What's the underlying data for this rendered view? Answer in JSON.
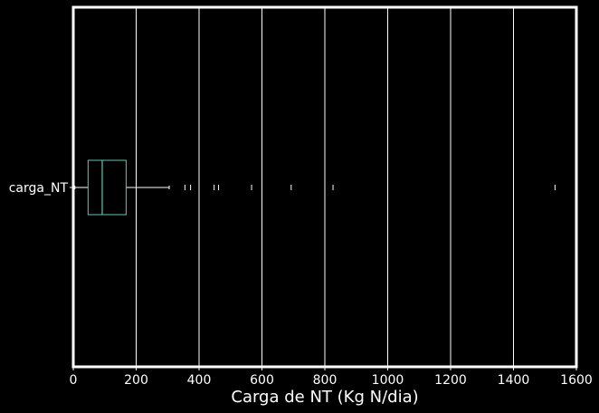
{
  "chart_data": {
    "type": "boxplot",
    "orientation": "horizontal",
    "xlabel": "Carga de NT (Kg N/dia)",
    "xlim": [
      0,
      1600
    ],
    "xticks": [
      0,
      200,
      400,
      600,
      800,
      1000,
      1200,
      1400,
      1600
    ],
    "grid": "vertical",
    "categories": [
      "carga_NT"
    ],
    "box": {
      "whisker_low": 5,
      "q1": 47,
      "median": 92,
      "q3": 168,
      "whisker_high": 305
    },
    "fliers": [
      355,
      373,
      448,
      462,
      567,
      693,
      826,
      1532
    ],
    "colors": {
      "background": "#000000",
      "axes": "#ffffff",
      "grid": "#ffffff",
      "box": "#5fc9b3",
      "whisker": "#ffffff",
      "text": "#ffffff"
    }
  }
}
